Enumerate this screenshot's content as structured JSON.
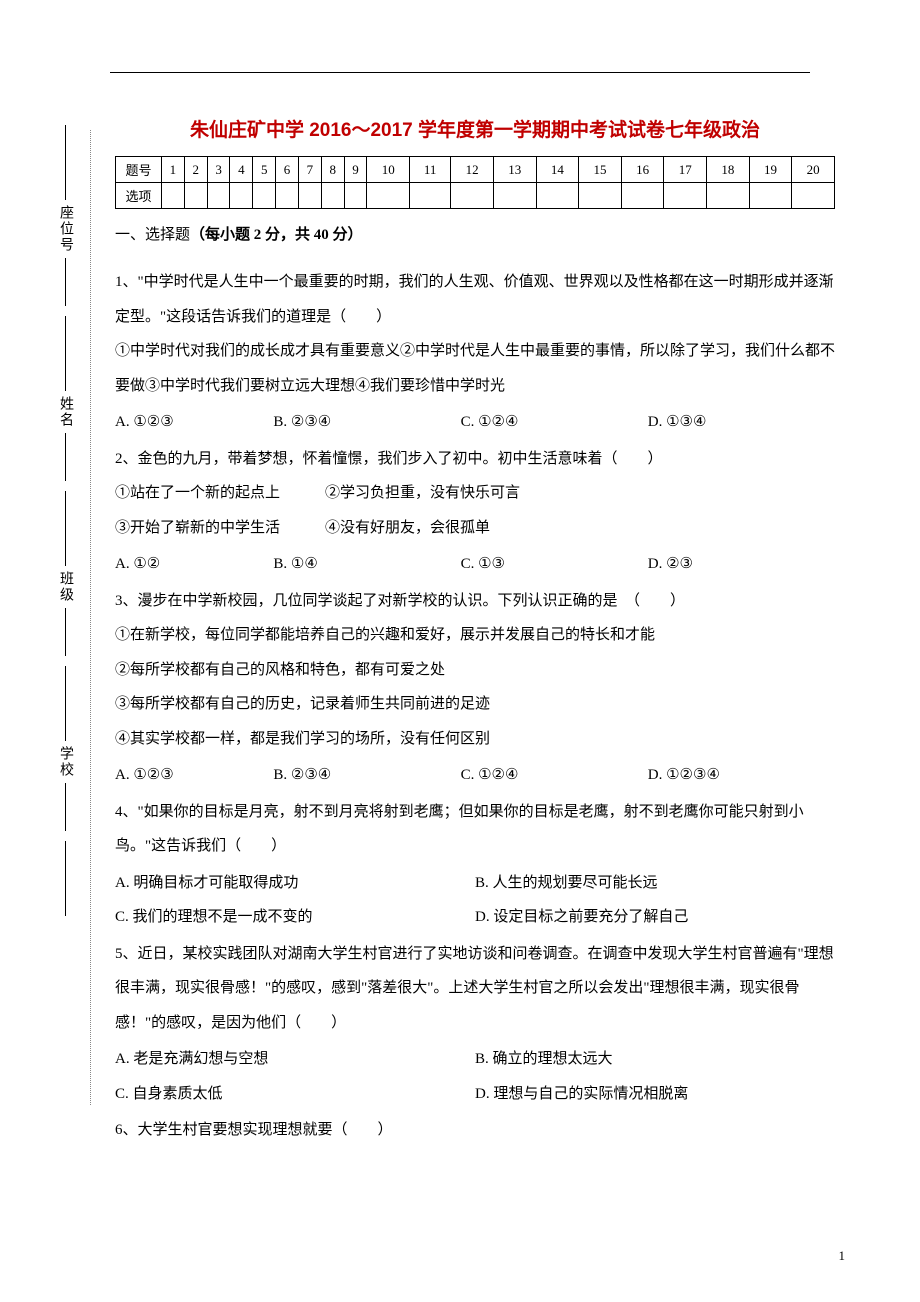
{
  "title": "朱仙庄矿中学 2016～2017 学年度第一学期期中考试试卷七年级政治",
  "table": {
    "header_label": "题号",
    "row_label": "选项",
    "numbers": [
      "1",
      "2",
      "3",
      "4",
      "5",
      "6",
      "7",
      "8",
      "9",
      "10",
      "11",
      "12",
      "13",
      "14",
      "15",
      "16",
      "17",
      "18",
      "19",
      "20"
    ]
  },
  "section_header": {
    "prefix": "一、选择题",
    "bold_part": "（每小题 2 分，共 40 分）"
  },
  "sidebar": {
    "seat": "座位号",
    "name": "姓名",
    "class": "班级",
    "school": "学校"
  },
  "q1": {
    "stem": "1、\"中学时代是人生中一个最重要的时期，我们的人生观、价值观、世界观以及性格都在这一时期形成并逐渐定型。\"这段话告诉我们的道理是（　　）",
    "sub": "①中学时代对我们的成长成才具有重要意义②中学时代是人生中最重要的事情，所以除了学习，我们什么都不要做③中学时代我们要树立远大理想④我们要珍惜中学时光",
    "opts": [
      "A. ①②③",
      "B. ②③④",
      "C. ①②④",
      "D. ①③④"
    ]
  },
  "q2": {
    "stem": "2、金色的九月，带着梦想，怀着憧憬，我们步入了初中。初中生活意味着（　　）",
    "sub1": "①站在了一个新的起点上　　　②学习负担重，没有快乐可言",
    "sub2": "③开始了崭新的中学生活　　　④没有好朋友，会很孤单",
    "opts": [
      "A. ①②",
      "B. ①④",
      "C. ①③",
      "D. ②③"
    ]
  },
  "q3": {
    "stem": "3、漫步在中学新校园，几位同学谈起了对新学校的认识。下列认识正确的是　（　　）",
    "sub1": "①在新学校，每位同学都能培养自己的兴趣和爱好，展示并发展自己的特长和才能",
    "sub2": "②每所学校都有自己的风格和特色，都有可爱之处",
    "sub3": "③每所学校都有自己的历史，记录着师生共同前进的足迹",
    "sub4": "④其实学校都一样，都是我们学习的场所，没有任何区别",
    "opts": [
      "A. ①②③",
      "B. ②③④",
      "C. ①②④",
      "D. ①②③④"
    ]
  },
  "q4": {
    "stem": "4、\"如果你的目标是月亮，射不到月亮将射到老鹰；但如果你的目标是老鹰，射不到老鹰你可能只射到小鸟。\"这告诉我们（　　）",
    "opts": [
      "A. 明确目标才可能取得成功",
      "B. 人生的规划要尽可能长远",
      "C. 我们的理想不是一成不变的",
      "D. 设定目标之前要充分了解自己"
    ]
  },
  "q5": {
    "stem": "5、近日，某校实践团队对湖南大学生村官进行了实地访谈和问卷调查。在调查中发现大学生村官普遍有\"理想很丰满，现实很骨感！\"的感叹，感到\"落差很大\"。上述大学生村官之所以会发出\"理想很丰满，现实很骨感！\"的感叹，是因为他们（　　）",
    "opts": [
      "A. 老是充满幻想与空想",
      "B. 确立的理想太远大",
      "C. 自身素质太低",
      "D. 理想与自己的实际情况相脱离"
    ]
  },
  "q6": {
    "stem": "6、大学生村官要想实现理想就要（　　）"
  },
  "page_number": "1",
  "colors": {
    "title": "#c00000",
    "text": "#000000",
    "background": "#ffffff"
  }
}
